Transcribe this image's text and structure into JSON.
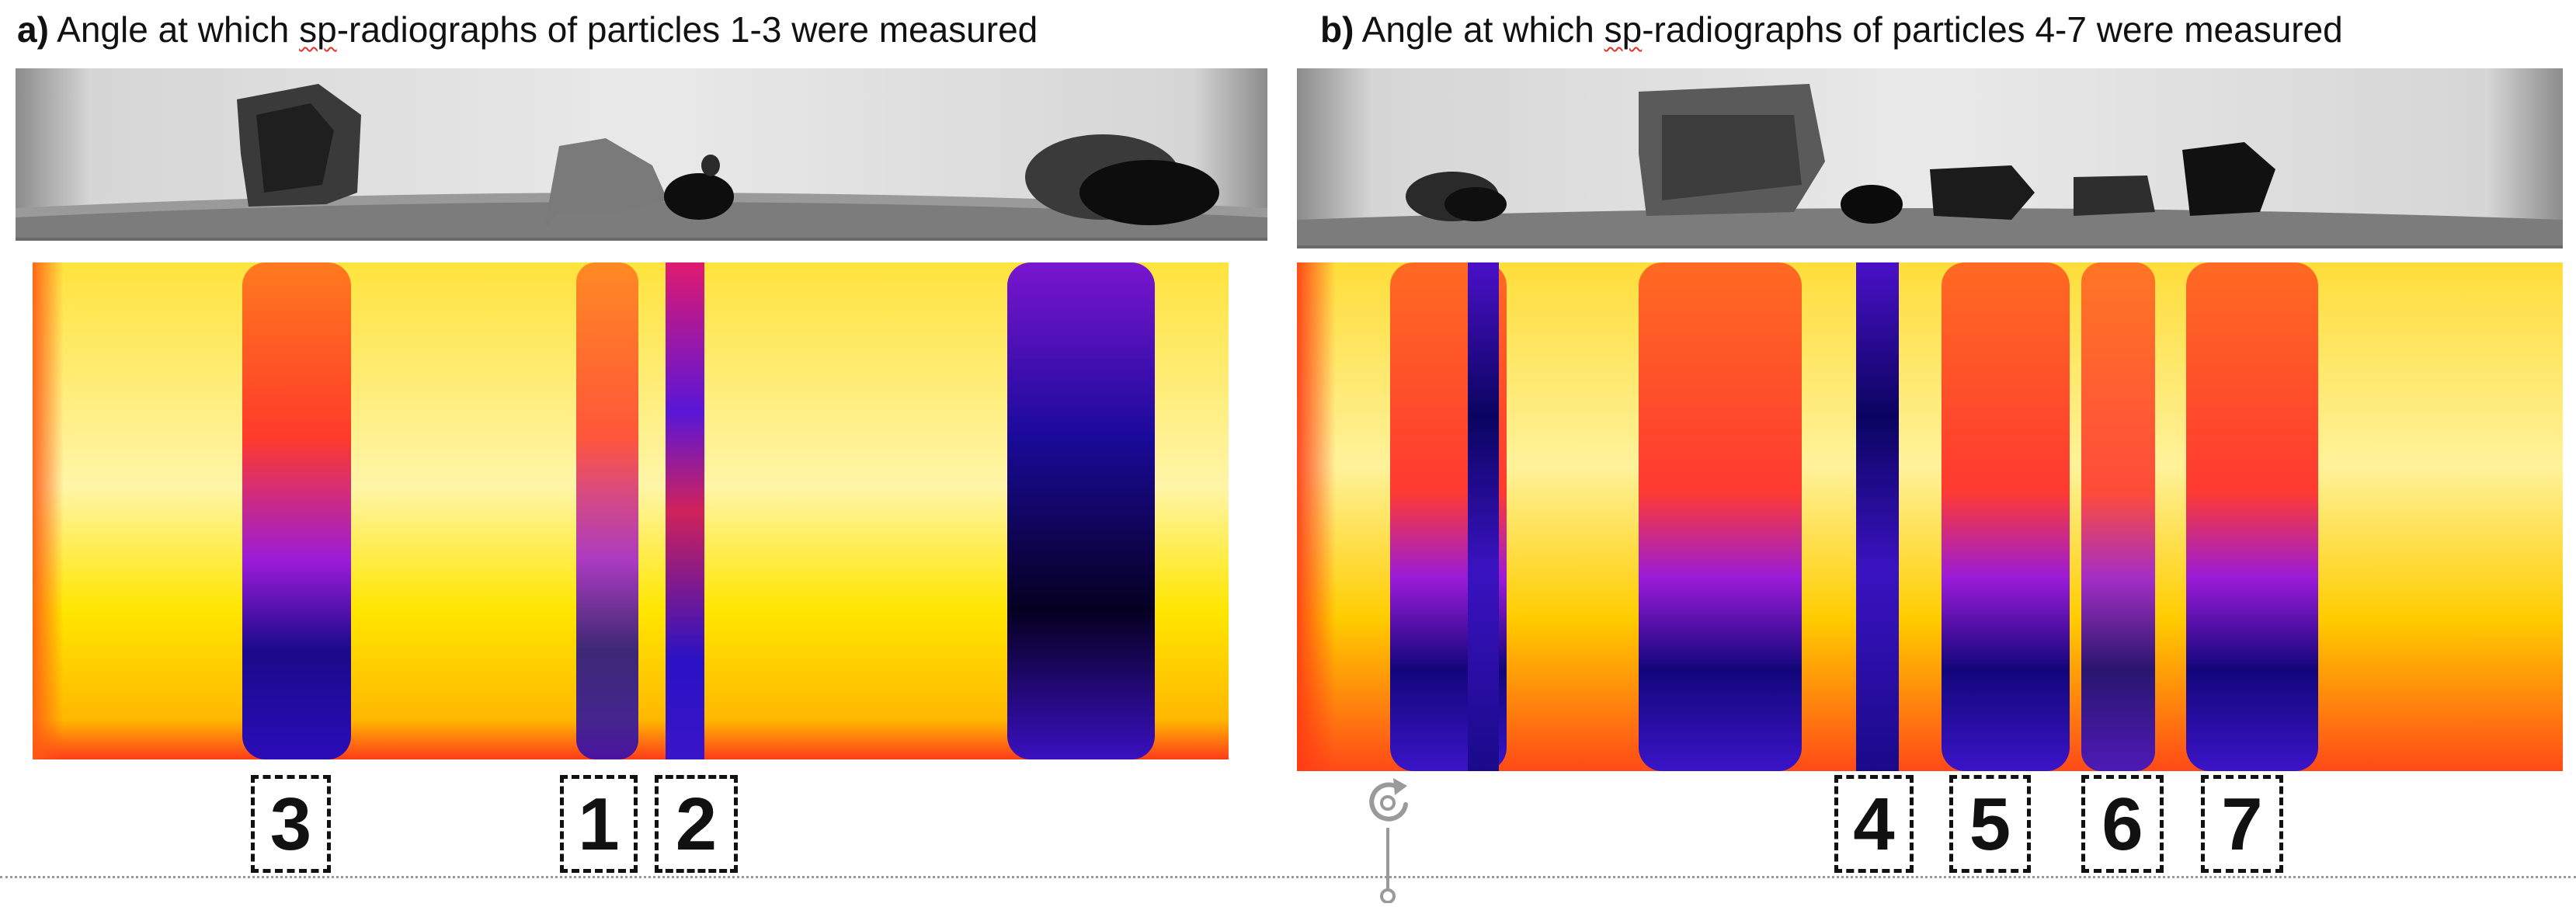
{
  "panels": [
    {
      "prefix": "a)",
      "title_before": " Angle at which ",
      "title_flagged": "sp",
      "title_after": "-radiographs of particles 1-3 were measured",
      "particle_labels": [
        "3",
        "1",
        "2"
      ]
    },
    {
      "prefix": "b)",
      "title_before": " Angle at which ",
      "title_flagged": "sp",
      "title_after": "-radiographs of particles 4-7 were measured",
      "particle_labels": [
        "4",
        "5",
        "6",
        "7"
      ]
    }
  ],
  "colors": {
    "heatmap_low": "#ffe600",
    "heatmap_mid": "#ff5a14",
    "heatmap_high": "#6a1bd0",
    "heatmap_max": "#050020",
    "spellcheck_underline": "#e0322a"
  },
  "icons": {
    "rotate_handle": "rotate-handle-icon"
  }
}
